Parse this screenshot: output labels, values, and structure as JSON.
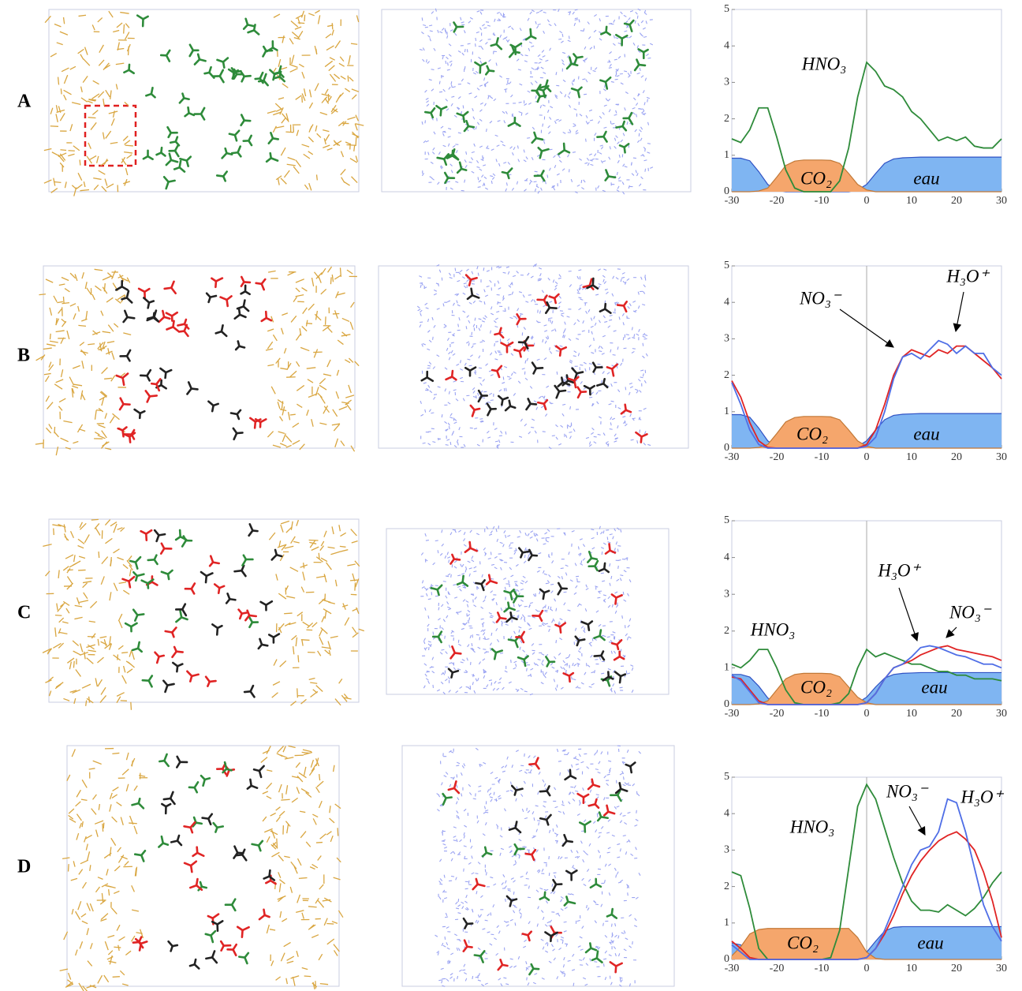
{
  "panels": [
    "A",
    "B",
    "C",
    "D"
  ],
  "chart_data": [
    {
      "type": "line",
      "x": [
        -30,
        -28,
        -26,
        -24,
        -22,
        -20,
        -18,
        -16,
        -14,
        -12,
        -10,
        -8,
        -6,
        -4,
        -2,
        0,
        2,
        4,
        6,
        8,
        10,
        12,
        14,
        16,
        18,
        20,
        22,
        24,
        26,
        28,
        30
      ],
      "xlim": [
        -30,
        30
      ],
      "xticks": [
        -30,
        -20,
        -10,
        0,
        10,
        20,
        30
      ],
      "ylim": [
        0,
        5
      ],
      "yticks": [
        0,
        1,
        2,
        3,
        4,
        5
      ],
      "series": [
        {
          "name": "eau",
          "kind": "area",
          "color": "#7fb5f2",
          "values": [
            0.92,
            0.92,
            0.85,
            0.55,
            0.2,
            0.04,
            0,
            0,
            0,
            0,
            0,
            0,
            0,
            0,
            0.05,
            0.2,
            0.5,
            0.78,
            0.9,
            0.93,
            0.94,
            0.95,
            0.95,
            0.95,
            0.95,
            0.95,
            0.95,
            0.95,
            0.95,
            0.95,
            0.95
          ]
        },
        {
          "name": "CO₂",
          "kind": "area",
          "color": "#f5a66c",
          "values": [
            0,
            0,
            0,
            0.02,
            0.1,
            0.4,
            0.72,
            0.84,
            0.87,
            0.87,
            0.87,
            0.86,
            0.78,
            0.5,
            0.2,
            0.05,
            0,
            0,
            0,
            0,
            0,
            0,
            0,
            0,
            0,
            0,
            0,
            0,
            0,
            0,
            0
          ]
        },
        {
          "name": "HNO₃",
          "kind": "line",
          "color": "#2e8b3a",
          "values": [
            1.45,
            1.35,
            1.7,
            2.3,
            2.3,
            1.5,
            0.6,
            0.1,
            0,
            0,
            0,
            0,
            0.3,
            1.2,
            2.6,
            3.55,
            3.3,
            2.9,
            2.8,
            2.6,
            2.2,
            2.0,
            1.7,
            1.4,
            1.5,
            1.4,
            1.5,
            1.25,
            1.2,
            1.2,
            1.45
          ]
        }
      ]
    },
    {
      "type": "line",
      "x": [
        -30,
        -28,
        -26,
        -24,
        -22,
        -20,
        -18,
        -16,
        -14,
        -12,
        -10,
        -8,
        -6,
        -4,
        -2,
        0,
        2,
        4,
        6,
        8,
        10,
        12,
        14,
        16,
        18,
        20,
        22,
        24,
        26,
        28,
        30
      ],
      "xlim": [
        -30,
        30
      ],
      "xticks": [
        -30,
        -20,
        -10,
        0,
        10,
        20,
        30
      ],
      "ylim": [
        0,
        5
      ],
      "yticks": [
        0,
        1,
        2,
        3,
        4,
        5
      ],
      "series": [
        {
          "name": "eau",
          "kind": "area",
          "color": "#7fb5f2",
          "values": [
            0.92,
            0.92,
            0.85,
            0.55,
            0.2,
            0.04,
            0,
            0,
            0,
            0,
            0,
            0,
            0,
            0,
            0.05,
            0.2,
            0.5,
            0.78,
            0.9,
            0.93,
            0.94,
            0.95,
            0.95,
            0.95,
            0.95,
            0.95,
            0.95,
            0.95,
            0.95,
            0.95,
            0.95
          ]
        },
        {
          "name": "CO₂",
          "kind": "area",
          "color": "#f5a66c",
          "values": [
            0,
            0,
            0,
            0.02,
            0.1,
            0.4,
            0.72,
            0.84,
            0.87,
            0.87,
            0.87,
            0.86,
            0.78,
            0.5,
            0.2,
            0.05,
            0,
            0,
            0,
            0,
            0,
            0,
            0,
            0,
            0,
            0,
            0,
            0,
            0,
            0,
            0
          ]
        },
        {
          "name": "NO₃⁻",
          "kind": "line",
          "color": "#e02424",
          "values": [
            1.85,
            1.4,
            0.7,
            0.2,
            0.02,
            0,
            0,
            0,
            0,
            0,
            0,
            0,
            0,
            0,
            0,
            0.1,
            0.5,
            1.2,
            2.0,
            2.5,
            2.7,
            2.6,
            2.5,
            2.7,
            2.6,
            2.8,
            2.8,
            2.6,
            2.4,
            2.2,
            1.9
          ]
        },
        {
          "name": "H₃O⁺",
          "kind": "line",
          "color": "#4f6ee6",
          "values": [
            1.8,
            1.2,
            0.5,
            0.1,
            0,
            0,
            0,
            0,
            0,
            0,
            0,
            0,
            0,
            0,
            0,
            0.05,
            0.3,
            1.0,
            1.9,
            2.5,
            2.6,
            2.45,
            2.7,
            2.95,
            2.85,
            2.6,
            2.8,
            2.6,
            2.6,
            2.2,
            2.0
          ]
        }
      ]
    },
    {
      "type": "line",
      "x": [
        -30,
        -28,
        -26,
        -24,
        -22,
        -20,
        -18,
        -16,
        -14,
        -12,
        -10,
        -8,
        -6,
        -4,
        -2,
        0,
        2,
        4,
        6,
        8,
        10,
        12,
        14,
        16,
        18,
        20,
        22,
        24,
        26,
        28,
        30
      ],
      "xlim": [
        -30,
        30
      ],
      "xticks": [
        -30,
        -20,
        -10,
        0,
        10,
        20,
        30
      ],
      "ylim": [
        0,
        5
      ],
      "yticks": [
        0,
        1,
        2,
        3,
        4,
        5
      ],
      "series": [
        {
          "name": "eau",
          "kind": "area",
          "color": "#7fb5f2",
          "values": [
            0.82,
            0.82,
            0.75,
            0.5,
            0.18,
            0.04,
            0,
            0,
            0,
            0,
            0,
            0,
            0,
            0,
            0.05,
            0.2,
            0.48,
            0.72,
            0.82,
            0.85,
            0.86,
            0.87,
            0.87,
            0.87,
            0.87,
            0.87,
            0.87,
            0.87,
            0.87,
            0.87,
            0.87
          ]
        },
        {
          "name": "CO₂",
          "kind": "area",
          "color": "#f5a66c",
          "values": [
            0,
            0,
            0,
            0.02,
            0.1,
            0.4,
            0.7,
            0.82,
            0.85,
            0.85,
            0.85,
            0.84,
            0.76,
            0.48,
            0.2,
            0.05,
            0,
            0,
            0,
            0,
            0,
            0,
            0,
            0,
            0,
            0,
            0,
            0,
            0,
            0,
            0
          ]
        },
        {
          "name": "HNO₃",
          "kind": "line",
          "color": "#2e8b3a",
          "values": [
            1.1,
            1.0,
            1.2,
            1.5,
            1.5,
            1.0,
            0.4,
            0.05,
            0,
            0,
            0,
            0,
            0.05,
            0.3,
            1.0,
            1.5,
            1.3,
            1.4,
            1.3,
            1.2,
            1.1,
            1.1,
            1.0,
            0.9,
            0.9,
            0.8,
            0.8,
            0.7,
            0.7,
            0.7,
            0.65
          ]
        },
        {
          "name": "NO₃⁻",
          "kind": "line",
          "color": "#e02424",
          "values": [
            0.75,
            0.7,
            0.4,
            0.1,
            0,
            0,
            0,
            0,
            0,
            0,
            0,
            0,
            0,
            0,
            0,
            0.05,
            0.3,
            0.7,
            1.0,
            1.1,
            1.2,
            1.35,
            1.45,
            1.55,
            1.6,
            1.5,
            1.45,
            1.4,
            1.35,
            1.3,
            1.2
          ]
        },
        {
          "name": "H₃O⁺",
          "kind": "line",
          "color": "#4f6ee6",
          "values": [
            0.8,
            0.65,
            0.35,
            0.05,
            0,
            0,
            0,
            0,
            0,
            0,
            0,
            0,
            0,
            0,
            0,
            0.05,
            0.3,
            0.7,
            1.0,
            1.1,
            1.3,
            1.55,
            1.6,
            1.55,
            1.45,
            1.35,
            1.3,
            1.2,
            1.1,
            1.1,
            1.0
          ]
        }
      ]
    },
    {
      "type": "line",
      "x": [
        -30,
        -28,
        -26,
        -24,
        -22,
        -20,
        -18,
        -16,
        -14,
        -12,
        -10,
        -8,
        -6,
        -4,
        -2,
        0,
        2,
        4,
        6,
        8,
        10,
        12,
        14,
        16,
        18,
        20,
        22,
        24,
        26,
        28,
        30
      ],
      "xlim": [
        -30,
        30
      ],
      "xticks": [
        -30,
        -20,
        -10,
        0,
        10,
        20,
        30
      ],
      "ylim": [
        0,
        5
      ],
      "yticks": [
        0,
        1,
        2,
        3,
        4,
        5
      ],
      "series": [
        {
          "name": "eau",
          "kind": "area",
          "color": "#7fb5f2",
          "values": [
            0.45,
            0.4,
            0.2,
            0.05,
            0,
            0,
            0,
            0,
            0,
            0,
            0,
            0,
            0,
            0,
            0,
            0.2,
            0.5,
            0.78,
            0.88,
            0.9,
            0.9,
            0.9,
            0.9,
            0.9,
            0.9,
            0.9,
            0.9,
            0.9,
            0.9,
            0.9,
            0.9
          ]
        },
        {
          "name": "CO₂",
          "kind": "area",
          "color": "#f5a66c",
          "values": [
            0.1,
            0.35,
            0.7,
            0.82,
            0.85,
            0.85,
            0.85,
            0.85,
            0.85,
            0.85,
            0.85,
            0.85,
            0.85,
            0.85,
            0.6,
            0.2,
            0.03,
            0,
            0,
            0,
            0,
            0,
            0,
            0,
            0,
            0,
            0,
            0,
            0,
            0,
            0
          ]
        },
        {
          "name": "HNO₃",
          "kind": "line",
          "color": "#2e8b3a",
          "values": [
            2.4,
            2.3,
            1.4,
            0.3,
            0,
            0,
            0,
            0,
            0,
            0,
            0,
            0.05,
            0.8,
            2.5,
            4.2,
            4.8,
            4.4,
            3.6,
            2.8,
            2.1,
            1.6,
            1.35,
            1.35,
            1.3,
            1.5,
            1.35,
            1.2,
            1.4,
            1.7,
            2.1,
            2.4
          ]
        },
        {
          "name": "NO₃⁻",
          "kind": "line",
          "color": "#e02424",
          "values": [
            0.5,
            0.3,
            0.05,
            0,
            0,
            0,
            0,
            0,
            0,
            0,
            0,
            0,
            0,
            0,
            0,
            0.05,
            0.3,
            0.7,
            1.2,
            1.8,
            2.3,
            2.7,
            3.0,
            3.25,
            3.4,
            3.5,
            3.3,
            3.0,
            2.4,
            1.6,
            0.6
          ]
        },
        {
          "name": "H₃O⁺",
          "kind": "line",
          "color": "#4f6ee6",
          "values": [
            0.4,
            0.2,
            0,
            0,
            0,
            0,
            0,
            0,
            0,
            0,
            0,
            0,
            0,
            0,
            0,
            0.05,
            0.3,
            0.8,
            1.4,
            2.0,
            2.6,
            3.0,
            3.1,
            3.5,
            4.4,
            4.3,
            3.5,
            2.5,
            1.5,
            0.9,
            0.5
          ]
        }
      ]
    }
  ]
}
